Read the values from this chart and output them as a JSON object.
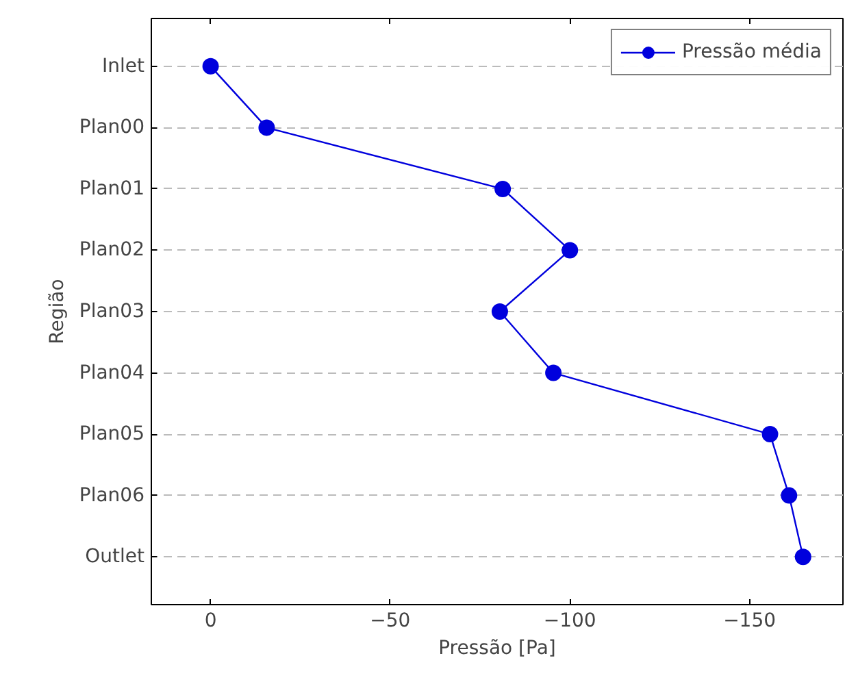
{
  "chart_data": {
    "type": "line",
    "orientation": "horizontal",
    "xlabel": "Pressão [Pa]",
    "ylabel": "Região",
    "categories": [
      "Inlet",
      "Plan00",
      "Plan01",
      "Plan02",
      "Plan03",
      "Plan04",
      "Plan05",
      "Plan06",
      "Outlet"
    ],
    "series": [
      {
        "name": "Pressão média",
        "color": "#0000dd",
        "values": [
          0,
          -15.6,
          -81.3,
          -100,
          -80.5,
          -95.4,
          -155.7,
          -161,
          -164.9
        ]
      }
    ],
    "xlim": [
      16.5,
      -176
    ],
    "xticks": [
      0,
      {
        "value": -50,
        "label": "−50"
      },
      {
        "value": -100,
        "label": "−100"
      },
      {
        "value": -150,
        "label": "−150"
      }
    ],
    "grid": "y",
    "legend": "top right",
    "marker": "circle",
    "line_style": "solid"
  }
}
